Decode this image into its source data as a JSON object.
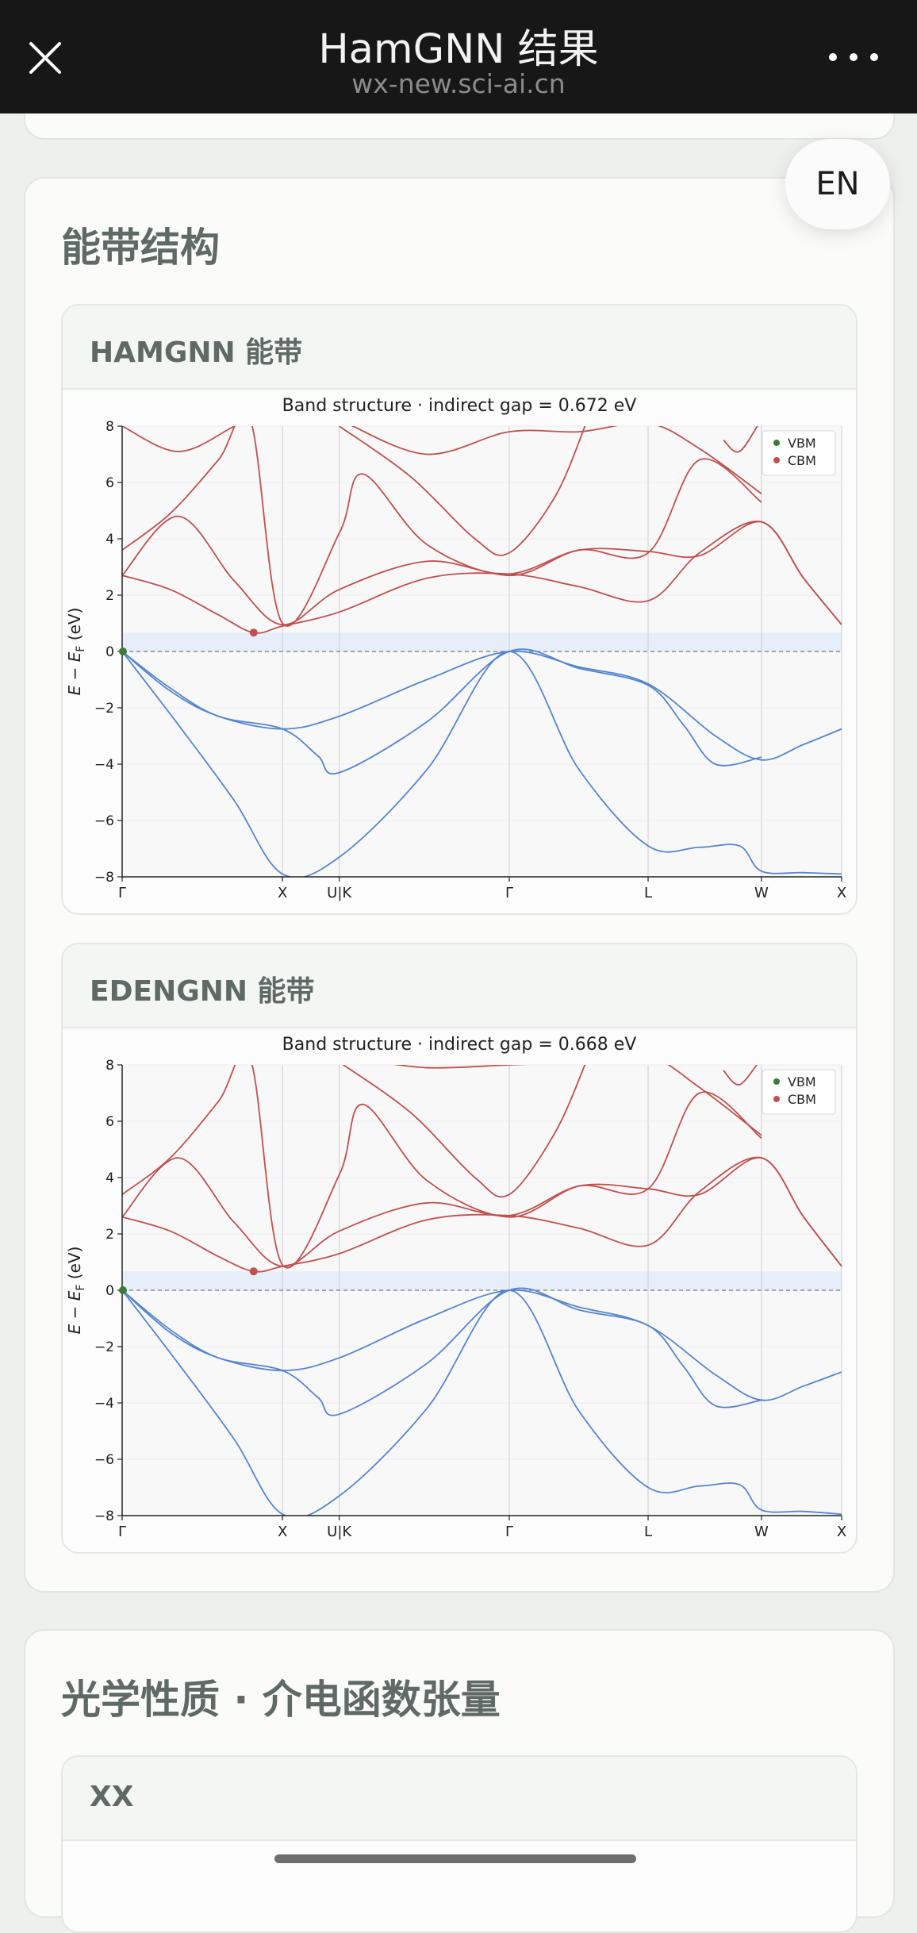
{
  "app": {
    "title": "HamGNN 结果",
    "url": "wx-new.sci-ai.cn",
    "lang_button": "EN"
  },
  "icons": {
    "close": "close-icon",
    "more": "more-dots-icon"
  },
  "sections": {
    "band_title": "能带结构",
    "optics_title": "光学性质 · 介电函数张量",
    "optics_sub": "XX"
  },
  "colors": {
    "conduction": "#c0504d",
    "valence": "#5585cf",
    "vbm": "#3a7a3a",
    "cbm": "#c0504d"
  },
  "chart_data": [
    {
      "type": "line",
      "panel_title": "HAMGNN 能带",
      "title": "Band structure  ·  indirect gap = 0.672 eV",
      "ylabel_main": "E − E",
      "ylabel_sub": "F",
      "ylabel_unit": " (eV)",
      "xticks": [
        "Γ",
        "X",
        "U|K",
        "Γ",
        "L",
        "W",
        "X"
      ],
      "xtick_pos": [
        0,
        1.0,
        1.354,
        2.414,
        3.28,
        3.987,
        4.487
      ],
      "ylim": [
        -8,
        8
      ],
      "yticks": [
        "8",
        "6",
        "4",
        "2",
        "0",
        "−2",
        "−4",
        "−6",
        "−8"
      ],
      "legend": [
        "VBM",
        "CBM"
      ],
      "vbm": {
        "x": 0,
        "y": 0
      },
      "cbm": {
        "x": 0.82,
        "y": 0.67
      },
      "series": [
        {
          "band": "valence",
          "x": [
            0,
            0.3,
            0.6,
            1.0,
            1.354,
            1.9,
            2.414,
            2.85,
            3.28,
            3.7,
            3.987,
            4.25,
            4.487
          ],
          "y": [
            0,
            -1.4,
            -2.3,
            -2.75,
            -2.3,
            -1.0,
            0,
            -0.55,
            -1.15,
            -3.0,
            -3.85,
            -3.3,
            -2.75
          ]
        },
        {
          "band": "valence",
          "x": [
            0,
            0.3,
            0.6,
            1.0,
            1.22,
            1.354,
            1.9,
            2.414,
            2.85,
            3.28,
            3.5,
            3.7,
            3.987
          ],
          "y": [
            0,
            -1.3,
            -2.3,
            -2.75,
            -3.7,
            -4.3,
            -2.5,
            0,
            -0.6,
            -1.2,
            -2.6,
            -4.0,
            -3.75
          ]
        },
        {
          "band": "valence",
          "x": [
            0,
            0.35,
            0.7,
            1.0,
            1.354,
            1.9,
            2.414,
            2.85,
            3.28,
            3.6,
            3.85,
            3.987,
            4.25,
            4.487
          ],
          "y": [
            0,
            -2.6,
            -5.3,
            -7.9,
            -7.3,
            -4.2,
            0,
            -4.2,
            -6.9,
            -6.95,
            -6.9,
            -7.8,
            -7.85,
            -7.9
          ]
        },
        {
          "band": "conduction",
          "x": [
            0,
            0.3,
            0.6,
            0.82,
            1.0,
            1.354,
            1.9,
            2.414,
            2.85,
            3.28,
            3.6,
            3.987,
            4.25,
            4.487
          ],
          "y": [
            2.7,
            2.2,
            1.3,
            0.67,
            0.9,
            1.4,
            2.6,
            2.75,
            2.3,
            1.8,
            3.5,
            4.6,
            2.6,
            0.95
          ]
        },
        {
          "band": "conduction",
          "x": [
            0,
            0.35,
            0.7,
            1.0,
            1.354,
            1.9,
            2.414,
            2.85,
            3.28,
            3.6,
            3.987,
            4.25,
            4.487
          ],
          "y": [
            2.7,
            4.8,
            2.5,
            0.95,
            2.2,
            3.2,
            2.75,
            3.6,
            3.55,
            3.4,
            4.6,
            2.6,
            0.95
          ]
        },
        {
          "band": "conduction",
          "x": [
            0,
            0.3,
            0.6,
            0.8,
            1.0,
            1.354,
            1.5,
            1.9,
            2.414,
            2.85,
            3.28,
            3.6,
            3.987
          ],
          "y": [
            3.6,
            4.9,
            6.8,
            8.2,
            1.0,
            4.2,
            6.3,
            3.8,
            2.7,
            3.6,
            3.5,
            6.8,
            5.3
          ]
        },
        {
          "band": "conduction",
          "x": [
            0,
            0.35,
            0.7,
            0.95
          ],
          "y": [
            8.0,
            7.1,
            8.0,
            8.8
          ]
        },
        {
          "band": "conduction",
          "x": [
            1.354,
            1.8,
            2.2,
            2.414,
            2.7,
            2.9
          ],
          "y": [
            8.0,
            6.2,
            4.0,
            3.5,
            5.5,
            8.2
          ]
        },
        {
          "band": "conduction",
          "x": [
            1.4,
            1.9,
            2.414,
            2.85,
            3.28,
            3.6,
            3.987
          ],
          "y": [
            8.1,
            7.0,
            7.8,
            7.8,
            8.1,
            7.2,
            5.6
          ]
        },
        {
          "band": "conduction",
          "x": [
            3.75,
            3.85,
            3.987,
            4.05
          ],
          "y": [
            7.5,
            7.1,
            8.2,
            8.3
          ]
        }
      ]
    },
    {
      "type": "line",
      "panel_title": "EDENGNN 能带",
      "title": "Band structure  ·  indirect gap = 0.668 eV",
      "ylabel_main": "E − E",
      "ylabel_sub": "F",
      "ylabel_unit": " (eV)",
      "xticks": [
        "Γ",
        "X",
        "U|K",
        "Γ",
        "L",
        "W",
        "X"
      ],
      "xtick_pos": [
        0,
        1.0,
        1.354,
        2.414,
        3.28,
        3.987,
        4.487
      ],
      "ylim": [
        -8,
        8
      ],
      "yticks": [
        "8",
        "6",
        "4",
        "2",
        "0",
        "−2",
        "−4",
        "−6",
        "−8"
      ],
      "legend": [
        "VBM",
        "CBM"
      ],
      "vbm": {
        "x": 0,
        "y": 0
      },
      "cbm": {
        "x": 0.82,
        "y": 0.67
      },
      "series": [
        {
          "band": "valence",
          "x": [
            0,
            0.3,
            0.6,
            1.0,
            1.354,
            1.9,
            2.414,
            2.85,
            3.28,
            3.7,
            3.987,
            4.25,
            4.487
          ],
          "y": [
            0,
            -1.5,
            -2.4,
            -2.85,
            -2.4,
            -1.0,
            0,
            -0.6,
            -1.25,
            -3.0,
            -3.9,
            -3.4,
            -2.9
          ]
        },
        {
          "band": "valence",
          "x": [
            0,
            0.3,
            0.6,
            1.0,
            1.22,
            1.354,
            1.9,
            2.414,
            2.85,
            3.28,
            3.5,
            3.7,
            3.987
          ],
          "y": [
            0,
            -1.4,
            -2.4,
            -2.85,
            -3.8,
            -4.4,
            -2.6,
            0,
            -0.7,
            -1.25,
            -2.7,
            -4.1,
            -3.9
          ]
        },
        {
          "band": "valence",
          "x": [
            0,
            0.35,
            0.7,
            1.0,
            1.354,
            1.9,
            2.414,
            2.85,
            3.28,
            3.6,
            3.85,
            3.987,
            4.25,
            4.487
          ],
          "y": [
            0,
            -2.6,
            -5.3,
            -7.95,
            -7.3,
            -4.2,
            0,
            -4.3,
            -7.0,
            -6.95,
            -6.9,
            -7.8,
            -7.85,
            -7.95
          ]
        },
        {
          "band": "conduction",
          "x": [
            0,
            0.3,
            0.6,
            0.82,
            1.0,
            1.354,
            1.9,
            2.414,
            2.85,
            3.28,
            3.6,
            3.987,
            4.25,
            4.487
          ],
          "y": [
            2.6,
            2.1,
            1.2,
            0.67,
            0.85,
            1.3,
            2.5,
            2.65,
            2.2,
            1.6,
            3.5,
            4.7,
            2.6,
            0.85
          ]
        },
        {
          "band": "conduction",
          "x": [
            0,
            0.35,
            0.7,
            1.0,
            1.354,
            1.9,
            2.414,
            2.85,
            3.28,
            3.6,
            3.987,
            4.25,
            4.487
          ],
          "y": [
            2.6,
            4.7,
            2.4,
            0.85,
            2.1,
            3.1,
            2.65,
            3.7,
            3.6,
            3.4,
            4.7,
            2.6,
            0.85
          ]
        },
        {
          "band": "conduction",
          "x": [
            0,
            0.3,
            0.6,
            0.8,
            1.0,
            1.354,
            1.5,
            1.9,
            2.414,
            2.85,
            3.28,
            3.6,
            3.987
          ],
          "y": [
            3.4,
            4.7,
            6.7,
            8.2,
            0.9,
            4.1,
            6.6,
            3.9,
            2.6,
            3.7,
            3.6,
            7.0,
            5.4
          ]
        },
        {
          "band": "conduction",
          "x": [
            1.354,
            1.8,
            2.2,
            2.414,
            2.7,
            2.9
          ],
          "y": [
            8.1,
            6.3,
            4.0,
            3.4,
            5.6,
            8.2
          ]
        },
        {
          "band": "conduction",
          "x": [
            1.5,
            1.9,
            2.414,
            2.85,
            3.28,
            3.6,
            3.987
          ],
          "y": [
            8.2,
            7.9,
            8.0,
            8.1,
            8.3,
            7.2,
            5.5
          ]
        },
        {
          "band": "conduction",
          "x": [
            3.75,
            3.85,
            3.987,
            4.05
          ],
          "y": [
            7.8,
            7.3,
            8.2,
            8.3
          ]
        }
      ]
    }
  ]
}
